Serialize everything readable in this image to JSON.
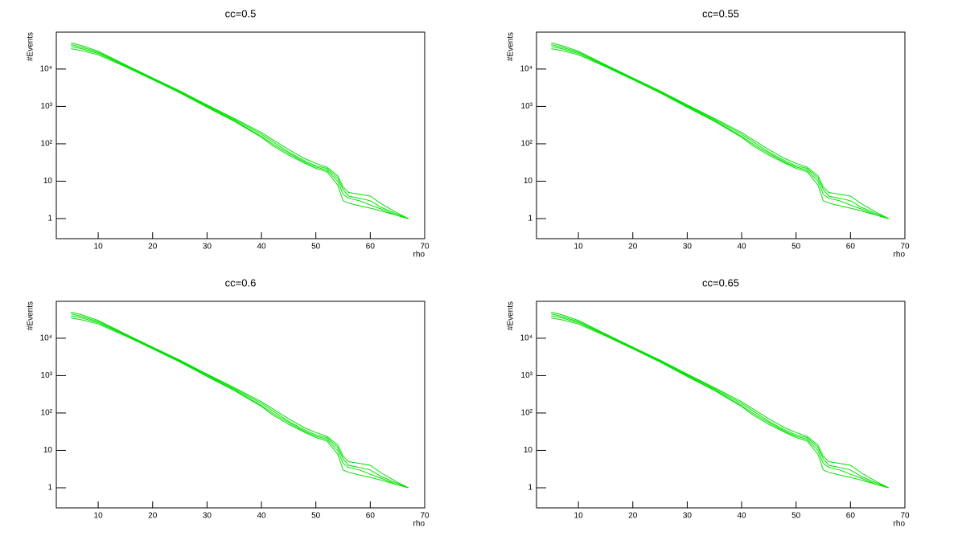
{
  "chart_data": [
    {
      "type": "line",
      "title": "cc=0.5",
      "xlabel": "rho",
      "ylabel": "#Events",
      "log_y": true,
      "xlim": [
        2.3,
        70
      ],
      "ylim": [
        0.29,
        97000
      ],
      "xticks": [
        10,
        20,
        30,
        40,
        50,
        60,
        70
      ],
      "yticks": [
        1,
        10,
        {
          "value": 100,
          "label": "10²"
        },
        {
          "value": 1000,
          "label": "10³"
        },
        {
          "value": 10000,
          "label": "10⁴"
        }
      ],
      "x": [
        5,
        7,
        10,
        15,
        20,
        25,
        30,
        35,
        40,
        42,
        45,
        48,
        50,
        52,
        54,
        55,
        56,
        58,
        60,
        62,
        65,
        67
      ],
      "series": [
        {
          "color": "#00e000",
          "values": [
            50000,
            42000,
            30000,
            13000,
            5800,
            2600,
            1100,
            480,
            200,
            130,
            70,
            40,
            30,
            24,
            14,
            7,
            5,
            4.5,
            4,
            2.5,
            1.4,
            1
          ]
        },
        {
          "color": "#00e000",
          "values": [
            45000,
            38000,
            28000,
            12500,
            5600,
            2500,
            1050,
            450,
            180,
            115,
            60,
            35,
            26,
            22,
            12,
            6,
            4,
            3.5,
            3,
            2,
            1.3,
            1
          ]
        },
        {
          "color": "#00e000",
          "values": [
            40000,
            35000,
            26000,
            12000,
            5400,
            2400,
            1000,
            420,
            160,
            100,
            55,
            32,
            24,
            20,
            10,
            4.5,
            3.5,
            3,
            2.3,
            1.8,
            1.2,
            1
          ]
        },
        {
          "color": "#00e000",
          "values": [
            35000,
            31000,
            24000,
            11500,
            5200,
            2300,
            950,
            400,
            150,
            90,
            50,
            30,
            22,
            18,
            8,
            3,
            2.6,
            2.2,
            1.9,
            1.6,
            1.2,
            1
          ]
        }
      ]
    },
    {
      "type": "line",
      "title": "cc=0.55",
      "xlabel": "rho",
      "ylabel": "#Events",
      "log_y": true,
      "xlim": [
        2.3,
        70
      ],
      "ylim": [
        0.29,
        97000
      ],
      "xticks": [
        10,
        20,
        30,
        40,
        50,
        60,
        70
      ],
      "yticks": [
        1,
        10,
        {
          "value": 100,
          "label": "10²"
        },
        {
          "value": 1000,
          "label": "10³"
        },
        {
          "value": 10000,
          "label": "10⁴"
        }
      ],
      "x": [
        5,
        7,
        10,
        15,
        20,
        25,
        30,
        35,
        40,
        42,
        45,
        48,
        50,
        52,
        54,
        55,
        56,
        58,
        60,
        62,
        65,
        67
      ],
      "series": [
        {
          "color": "#00e000",
          "values": [
            50000,
            42000,
            30000,
            13000,
            5800,
            2600,
            1100,
            480,
            200,
            130,
            70,
            40,
            30,
            24,
            14,
            7,
            5,
            4.5,
            4,
            2.5,
            1.4,
            1
          ]
        },
        {
          "color": "#00e000",
          "values": [
            45000,
            38000,
            28000,
            12500,
            5600,
            2500,
            1050,
            450,
            180,
            115,
            60,
            35,
            26,
            22,
            12,
            6,
            4,
            3.5,
            3,
            2,
            1.3,
            1
          ]
        },
        {
          "color": "#00e000",
          "values": [
            40000,
            35000,
            26000,
            12000,
            5400,
            2400,
            1000,
            420,
            160,
            100,
            55,
            32,
            24,
            20,
            10,
            4.5,
            3.5,
            3,
            2.3,
            1.8,
            1.2,
            1
          ]
        },
        {
          "color": "#00e000",
          "values": [
            35000,
            31000,
            24000,
            11500,
            5200,
            2300,
            950,
            400,
            150,
            90,
            50,
            30,
            22,
            18,
            8,
            3,
            2.6,
            2.2,
            1.9,
            1.6,
            1.2,
            1
          ]
        }
      ]
    },
    {
      "type": "line",
      "title": "cc=0.6",
      "xlabel": "rho",
      "ylabel": "#Events",
      "log_y": true,
      "xlim": [
        2.3,
        70
      ],
      "ylim": [
        0.29,
        97000
      ],
      "xticks": [
        10,
        20,
        30,
        40,
        50,
        60,
        70
      ],
      "yticks": [
        1,
        10,
        {
          "value": 100,
          "label": "10²"
        },
        {
          "value": 1000,
          "label": "10³"
        },
        {
          "value": 10000,
          "label": "10⁴"
        }
      ],
      "x": [
        5,
        7,
        10,
        15,
        20,
        25,
        30,
        35,
        40,
        42,
        45,
        48,
        50,
        52,
        54,
        55,
        56,
        58,
        60,
        62,
        65,
        67
      ],
      "series": [
        {
          "color": "#00e000",
          "values": [
            50000,
            42000,
            30000,
            13000,
            5800,
            2600,
            1100,
            480,
            200,
            130,
            70,
            40,
            30,
            24,
            14,
            7,
            5,
            4.5,
            4,
            2.5,
            1.4,
            1
          ]
        },
        {
          "color": "#00e000",
          "values": [
            45000,
            38000,
            28000,
            12500,
            5600,
            2500,
            1050,
            450,
            180,
            115,
            60,
            35,
            26,
            22,
            12,
            6,
            4,
            3.5,
            3,
            2,
            1.3,
            1
          ]
        },
        {
          "color": "#00e000",
          "values": [
            40000,
            35000,
            26000,
            12000,
            5400,
            2400,
            1000,
            420,
            160,
            100,
            55,
            32,
            24,
            20,
            10,
            4.5,
            3.5,
            3,
            2.3,
            1.8,
            1.2,
            1
          ]
        },
        {
          "color": "#00e000",
          "values": [
            35000,
            31000,
            24000,
            11500,
            5200,
            2300,
            950,
            400,
            150,
            90,
            50,
            30,
            22,
            18,
            8,
            3,
            2.6,
            2.2,
            1.9,
            1.6,
            1.2,
            1
          ]
        }
      ]
    },
    {
      "type": "line",
      "title": "cc=0.65",
      "xlabel": "rho",
      "ylabel": "#Events",
      "log_y": true,
      "xlim": [
        2.3,
        70
      ],
      "ylim": [
        0.29,
        97000
      ],
      "xticks": [
        10,
        20,
        30,
        40,
        50,
        60,
        70
      ],
      "yticks": [
        1,
        10,
        {
          "value": 100,
          "label": "10²"
        },
        {
          "value": 1000,
          "label": "10³"
        },
        {
          "value": 10000,
          "label": "10⁴"
        }
      ],
      "x": [
        5,
        7,
        10,
        15,
        20,
        25,
        30,
        35,
        40,
        42,
        45,
        48,
        50,
        52,
        54,
        55,
        56,
        58,
        60,
        62,
        65,
        67
      ],
      "series": [
        {
          "color": "#00e000",
          "values": [
            50000,
            42000,
            30000,
            13000,
            5800,
            2600,
            1100,
            480,
            200,
            130,
            70,
            40,
            30,
            24,
            14,
            7,
            5,
            4.5,
            4,
            2.5,
            1.4,
            1
          ]
        },
        {
          "color": "#00e000",
          "values": [
            45000,
            38000,
            28000,
            12500,
            5600,
            2500,
            1050,
            450,
            180,
            115,
            60,
            35,
            26,
            22,
            12,
            6,
            4,
            3.5,
            3,
            2,
            1.3,
            1
          ]
        },
        {
          "color": "#00e000",
          "values": [
            40000,
            35000,
            26000,
            12000,
            5400,
            2400,
            1000,
            420,
            160,
            100,
            55,
            32,
            24,
            20,
            10,
            4.5,
            3.5,
            3,
            2.3,
            1.8,
            1.2,
            1
          ]
        },
        {
          "color": "#00e000",
          "values": [
            35000,
            31000,
            24000,
            11500,
            5200,
            2300,
            950,
            400,
            150,
            90,
            50,
            30,
            22,
            18,
            8,
            3,
            2.6,
            2.2,
            1.9,
            1.6,
            1.2,
            1
          ]
        }
      ]
    }
  ]
}
